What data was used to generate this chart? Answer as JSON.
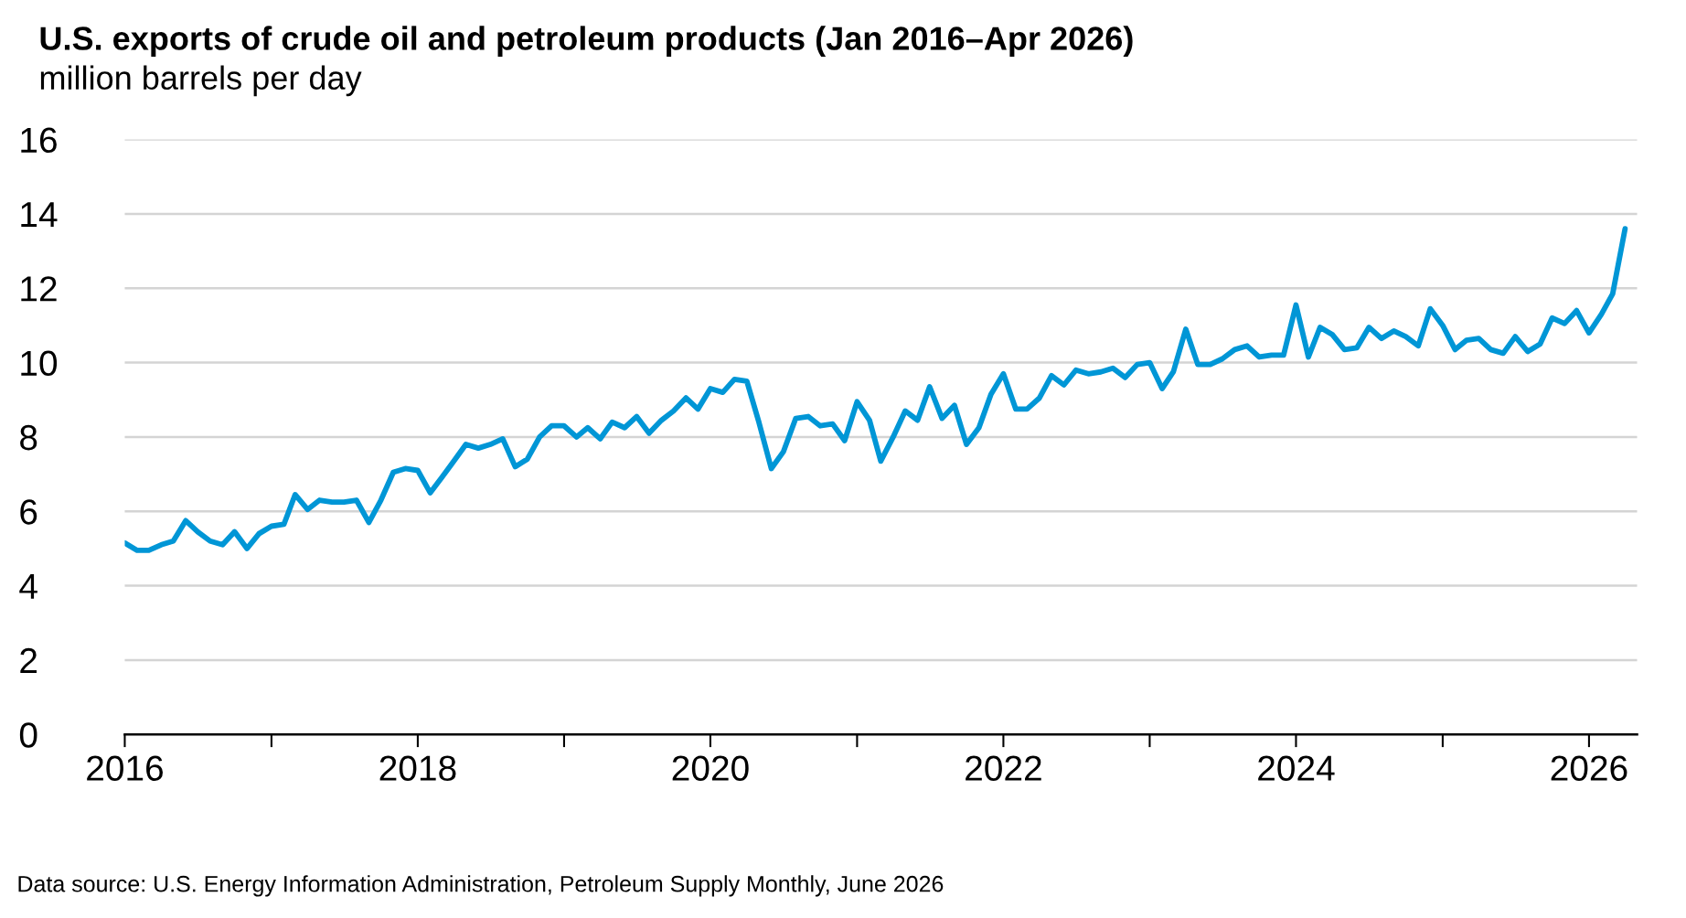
{
  "chart_data": {
    "type": "line",
    "title": "U.S. exports of crude oil and petroleum products (Jan 2016–Apr 2026)",
    "subtitle": "million barrels per day",
    "annotations": [
      "Data source: U.S. Energy Information Administration, Petroleum Supply Monthly, June 2026"
    ],
    "x": [
      "2016-01",
      "2016-02",
      "2016-03",
      "2016-04",
      "2016-05",
      "2016-06",
      "2016-07",
      "2016-08",
      "2016-09",
      "2016-10",
      "2016-11",
      "2016-12",
      "2017-01",
      "2017-02",
      "2017-03",
      "2017-04",
      "2017-05",
      "2017-06",
      "2017-07",
      "2017-08",
      "2017-09",
      "2017-10",
      "2017-11",
      "2017-12",
      "2018-01",
      "2018-02",
      "2018-03",
      "2018-04",
      "2018-05",
      "2018-06",
      "2018-07",
      "2018-08",
      "2018-09",
      "2018-10",
      "2018-11",
      "2018-12",
      "2019-01",
      "2019-02",
      "2019-03",
      "2019-04",
      "2019-05",
      "2019-06",
      "2019-07",
      "2019-08",
      "2019-09",
      "2019-10",
      "2019-11",
      "2019-12",
      "2020-01",
      "2020-02",
      "2020-03",
      "2020-04",
      "2020-05",
      "2020-06",
      "2020-07",
      "2020-08",
      "2020-09",
      "2020-10",
      "2020-11",
      "2020-12",
      "2021-01",
      "2021-02",
      "2021-03",
      "2021-04",
      "2021-05",
      "2021-06",
      "2021-07",
      "2021-08",
      "2021-09",
      "2021-10",
      "2021-11",
      "2021-12",
      "2022-01",
      "2022-02",
      "2022-03",
      "2022-04",
      "2022-05",
      "2022-06",
      "2022-07",
      "2022-08",
      "2022-09",
      "2022-10",
      "2022-11",
      "2022-12",
      "2023-01",
      "2023-02",
      "2023-03",
      "2023-04",
      "2023-05",
      "2023-06",
      "2023-07",
      "2023-08",
      "2023-09",
      "2023-10",
      "2023-11",
      "2023-12",
      "2024-01",
      "2024-02",
      "2024-03",
      "2024-04",
      "2024-05",
      "2024-06",
      "2024-07",
      "2024-08",
      "2024-09",
      "2024-10",
      "2024-11",
      "2024-12",
      "2025-01",
      "2025-02",
      "2025-03",
      "2025-04",
      "2025-05",
      "2025-06",
      "2025-07",
      "2025-08",
      "2025-09",
      "2025-10",
      "2025-11",
      "2025-12",
      "2026-01",
      "2026-02",
      "2026-03",
      "2026-04"
    ],
    "series": [
      {
        "color": "#0096d6",
        "values": [
          5.15,
          4.95,
          4.95,
          5.1,
          5.2,
          5.75,
          5.45,
          5.2,
          5.1,
          5.45,
          5.0,
          5.4,
          5.6,
          5.65,
          6.45,
          6.05,
          6.3,
          6.25,
          6.25,
          6.3,
          5.7,
          6.3,
          7.05,
          7.15,
          7.1,
          6.5,
          6.9,
          7.35,
          7.8,
          7.7,
          7.8,
          7.95,
          7.2,
          7.4,
          8.0,
          8.3,
          8.3,
          8.0,
          8.25,
          7.95,
          8.4,
          8.25,
          8.55,
          8.1,
          8.45,
          8.7,
          9.05,
          8.75,
          9.3,
          9.2,
          9.55,
          9.5,
          8.4,
          7.15,
          7.6,
          8.5,
          8.55,
          8.3,
          8.35,
          7.9,
          8.95,
          8.45,
          7.35,
          8.0,
          8.7,
          8.45,
          9.35,
          8.5,
          8.85,
          7.8,
          8.25,
          9.15,
          9.7,
          8.75,
          8.75,
          9.05,
          9.65,
          9.4,
          9.8,
          9.7,
          9.75,
          9.85,
          9.6,
          9.95,
          10.0,
          9.3,
          9.75,
          10.9,
          9.95,
          9.95,
          10.1,
          10.35,
          10.45,
          10.15,
          10.2,
          10.2,
          11.55,
          10.15,
          10.95,
          10.75,
          10.35,
          10.4,
          10.95,
          10.65,
          10.85,
          10.7,
          10.45,
          11.45,
          11.0,
          10.35,
          10.6,
          10.65,
          10.35,
          10.25,
          10.7,
          10.3,
          10.5,
          11.2,
          11.05,
          11.4,
          10.8,
          11.3,
          11.85,
          13.6
        ]
      }
    ],
    "xlim": [
      "2016-01",
      "2026-05"
    ],
    "xticks": [
      {
        "value": "2016",
        "label": "2016"
      },
      {
        "value": "2017",
        "label": null
      },
      {
        "value": "2018",
        "label": "2018"
      },
      {
        "value": "2019",
        "label": null
      },
      {
        "value": "2020",
        "label": "2020"
      },
      {
        "value": "2021",
        "label": null
      },
      {
        "value": "2022",
        "label": "2022"
      },
      {
        "value": "2023",
        "label": null
      },
      {
        "value": "2024",
        "label": "2024"
      },
      {
        "value": "2025",
        "label": null
      },
      {
        "value": "2026",
        "label": "2026"
      }
    ],
    "ylim": [
      0,
      16
    ],
    "yticks": [
      0,
      2,
      4,
      6,
      8,
      10,
      12,
      14,
      16
    ],
    "grid": "y",
    "line_style": "solid"
  }
}
